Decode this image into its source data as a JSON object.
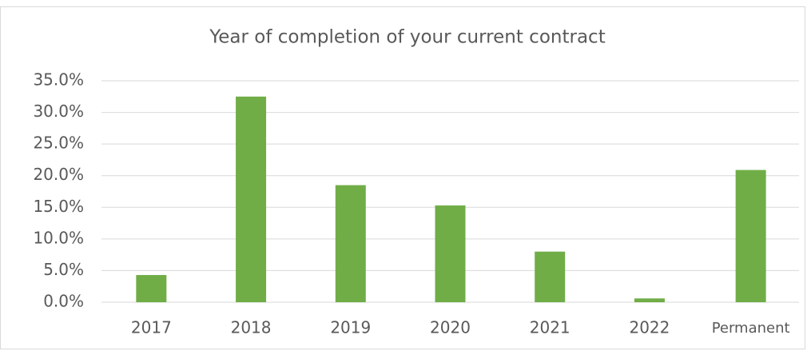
{
  "chart_data": {
    "type": "bar",
    "title": "Year of completion of your current contract",
    "categories": [
      "2017",
      "2018",
      "2019",
      "2020",
      "2021",
      "2022",
      "Permanent"
    ],
    "values": [
      4.3,
      32.5,
      18.5,
      15.3,
      8.0,
      0.6,
      20.9
    ],
    "color": "#70ad47",
    "ylim": [
      0,
      35
    ],
    "yticks": [
      {
        "value": 0,
        "label": "0.0%"
      },
      {
        "value": 5,
        "label": "5.0%"
      },
      {
        "value": 10,
        "label": "10.0%"
      },
      {
        "value": 15,
        "label": "15.0%"
      },
      {
        "value": 20,
        "label": "20.0%"
      },
      {
        "value": 25,
        "label": "25.0%"
      },
      {
        "value": 30,
        "label": "30.0%"
      },
      {
        "value": 35,
        "label": "35.0%"
      }
    ],
    "grid": true
  }
}
